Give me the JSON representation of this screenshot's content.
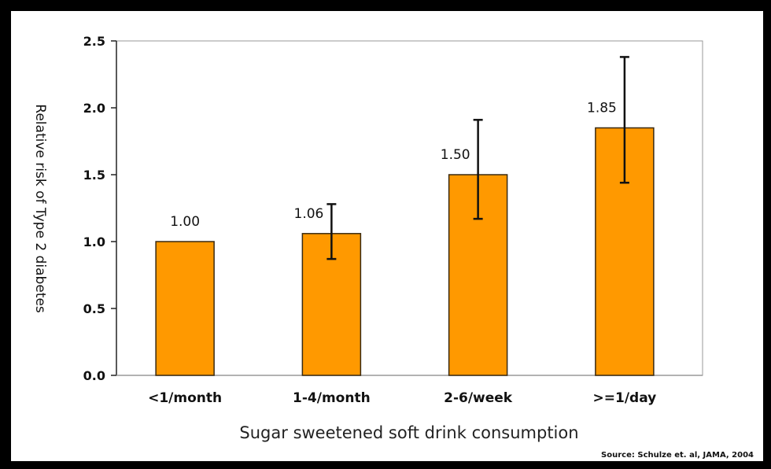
{
  "chart_data": {
    "type": "bar",
    "categories": [
      "<1/month",
      "1-4/month",
      "2-6/week",
      ">=1/day"
    ],
    "values": [
      1.0,
      1.06,
      1.5,
      1.85
    ],
    "value_labels": [
      "1.00",
      "1.06",
      "1.50",
      "1.85"
    ],
    "error_low": [
      null,
      0.87,
      1.17,
      1.44
    ],
    "error_high": [
      null,
      1.28,
      1.91,
      2.38
    ],
    "xlabel": "Sugar sweetened soft drink consumption",
    "ylabel": "Relative risk of Type 2 diabetes",
    "ylim": [
      0,
      2.5
    ],
    "yticks": [
      "0.0",
      "0.5",
      "1.0",
      "1.5",
      "2.0",
      "2.5"
    ],
    "grid": false,
    "bar_color": "#FF9900",
    "source": "Source: Schulze et. al, JAMA, 2004"
  }
}
